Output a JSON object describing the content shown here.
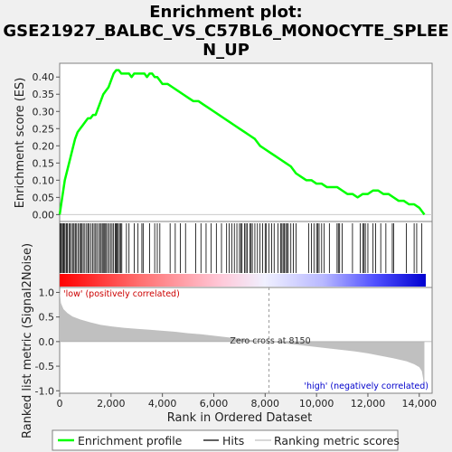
{
  "chart_data": {
    "type": "line",
    "title": [
      "Enrichment plot:",
      "GSE21927_BALBC_VS_C57BL6_MONOCYTE_SPLEE",
      "N_UP"
    ],
    "ylabel_top": "Enrichment score (ES)",
    "ylabel_bottom": "Ranked list metric (Signal2Noise)",
    "xlabel": "Rank in Ordered Dataset",
    "xlim": [
      0,
      14500
    ],
    "x_ticks": [
      0,
      2000,
      4000,
      6000,
      8000,
      10000,
      12000,
      14000
    ],
    "x_tick_labels": [
      "0",
      "2,000",
      "4,000",
      "6,000",
      "8,000",
      "10,000",
      "12,000",
      "14,000"
    ],
    "es_ylim": [
      -0.02,
      0.44
    ],
    "es_ticks": [
      0.0,
      0.05,
      0.1,
      0.15,
      0.2,
      0.25,
      0.3,
      0.35,
      0.4
    ],
    "es_tick_labels": [
      "0.00",
      "0.05",
      "0.10",
      "0.15",
      "0.20",
      "0.25",
      "0.30",
      "0.35",
      "0.40"
    ],
    "metric_ylim": [
      -1.05,
      1.1
    ],
    "metric_ticks": [
      1.0,
      0.5,
      0.0,
      -0.5,
      -1.0
    ],
    "metric_tick_labels": [
      "1.0",
      "0.5",
      "0.0",
      "-0.5",
      "-1.0"
    ],
    "enrichment_profile": {
      "name": "Enrichment profile",
      "x": [
        0,
        60,
        120,
        200,
        300,
        400,
        500,
        600,
        700,
        800,
        900,
        1000,
        1100,
        1200,
        1300,
        1400,
        1500,
        1600,
        1700,
        1800,
        1900,
        2000,
        2100,
        2200,
        2300,
        2400,
        2500,
        2600,
        2700,
        2800,
        2900,
        3000,
        3100,
        3200,
        3300,
        3400,
        3500,
        3600,
        3700,
        3800,
        3900,
        4000,
        4200,
        4400,
        4600,
        4800,
        5000,
        5200,
        5400,
        5600,
        5800,
        6000,
        6200,
        6400,
        6600,
        6800,
        7000,
        7200,
        7400,
        7600,
        7800,
        8000,
        8200,
        8400,
        8600,
        8800,
        9000,
        9200,
        9400,
        9600,
        9800,
        10000,
        10200,
        10400,
        10600,
        10800,
        11000,
        11200,
        11400,
        11600,
        11800,
        12000,
        12200,
        12400,
        12600,
        12800,
        13000,
        13200,
        13400,
        13600,
        13800,
        14000,
        14200
      ],
      "y": [
        0.0,
        0.03,
        0.06,
        0.1,
        0.13,
        0.16,
        0.19,
        0.22,
        0.24,
        0.25,
        0.26,
        0.27,
        0.28,
        0.28,
        0.29,
        0.29,
        0.31,
        0.33,
        0.35,
        0.36,
        0.37,
        0.39,
        0.41,
        0.42,
        0.42,
        0.41,
        0.41,
        0.41,
        0.41,
        0.4,
        0.41,
        0.41,
        0.41,
        0.41,
        0.41,
        0.4,
        0.41,
        0.41,
        0.4,
        0.4,
        0.39,
        0.38,
        0.38,
        0.37,
        0.36,
        0.35,
        0.34,
        0.33,
        0.33,
        0.32,
        0.31,
        0.3,
        0.29,
        0.28,
        0.27,
        0.26,
        0.25,
        0.24,
        0.23,
        0.22,
        0.2,
        0.19,
        0.18,
        0.17,
        0.16,
        0.15,
        0.14,
        0.12,
        0.11,
        0.1,
        0.1,
        0.09,
        0.09,
        0.08,
        0.08,
        0.08,
        0.07,
        0.06,
        0.06,
        0.05,
        0.06,
        0.06,
        0.07,
        0.07,
        0.06,
        0.06,
        0.05,
        0.04,
        0.04,
        0.03,
        0.03,
        0.02,
        0.0
      ]
    },
    "hits": {
      "name": "Hits",
      "x": [
        20,
        60,
        100,
        140,
        170,
        210,
        260,
        300,
        360,
        400,
        460,
        520,
        560,
        610,
        660,
        720,
        780,
        820,
        870,
        920,
        980,
        1050,
        1100,
        1150,
        1220,
        1280,
        1340,
        1400,
        1450,
        1520,
        1580,
        1620,
        1680,
        1720,
        1760,
        1800,
        1860,
        1920,
        1980,
        2040,
        2100,
        2160,
        2200,
        2240,
        2280,
        2330,
        2380,
        2420,
        2600,
        2700,
        2900,
        3050,
        3200,
        3250,
        3500,
        3700,
        3800,
        3900,
        4300,
        4500,
        4700,
        4900,
        5300,
        5500,
        5700,
        5900,
        6100,
        6300,
        6500,
        6600,
        6700,
        6800,
        6900,
        7000,
        7050,
        7100,
        7200,
        7250,
        7300,
        7400,
        7450,
        7500,
        7600,
        7700,
        7800,
        7900,
        8000,
        8050,
        8150,
        8250,
        8350,
        8500,
        8600,
        8650,
        8700,
        8750,
        8800,
        8850,
        8900,
        9000,
        9100,
        9200,
        9700,
        9800,
        9900,
        10000,
        10050,
        10100,
        10200,
        10300,
        10500,
        10800,
        10850,
        10900,
        11000,
        11400,
        11700,
        11800,
        11850,
        11900,
        12000,
        12200,
        12300,
        12500,
        12700,
        12950,
        13000,
        13500,
        13800,
        13900,
        14100
      ]
    },
    "ranking_metric": {
      "name": "Ranking metric scores",
      "x": [
        0,
        50,
        150,
        300,
        500,
        800,
        1200,
        1600,
        2000,
        2500,
        3000,
        3500,
        4000,
        4500,
        5000,
        5500,
        6000,
        6500,
        7000,
        7500,
        8000,
        8150,
        8500,
        9000,
        9500,
        10000,
        10500,
        11000,
        11500,
        12000,
        12500,
        13000,
        13500,
        13800,
        14000,
        14100,
        14150,
        14200
      ],
      "y": [
        1.02,
        0.78,
        0.66,
        0.58,
        0.51,
        0.45,
        0.39,
        0.34,
        0.31,
        0.28,
        0.26,
        0.24,
        0.22,
        0.2,
        0.17,
        0.15,
        0.12,
        0.09,
        0.06,
        0.03,
        0.01,
        0.0,
        -0.02,
        -0.05,
        -0.08,
        -0.11,
        -0.14,
        -0.17,
        -0.2,
        -0.24,
        -0.29,
        -0.34,
        -0.4,
        -0.46,
        -0.52,
        -0.6,
        -0.75,
        -0.97
      ]
    },
    "annotations": {
      "low_label": "'low' (positively correlated)",
      "high_label": "'high' (negatively correlated)",
      "zero_cross_label": "Zero cross at 8150",
      "zero_cross": 8150
    },
    "colors": {
      "profile": "#00ff00",
      "hits": "#000000",
      "metric_fill": "#c0c0c0",
      "low_text": "#cc0000",
      "high_text": "#0000cc",
      "gradient": [
        "#ff0000",
        "#ff8080",
        "#ffd0d0",
        "#f0f0ff",
        "#b0b0ff",
        "#4040ff",
        "#0000cc"
      ]
    },
    "legend": {
      "placement": "bottom",
      "items": [
        "Enrichment profile",
        "Hits",
        "Ranking metric scores"
      ]
    }
  }
}
